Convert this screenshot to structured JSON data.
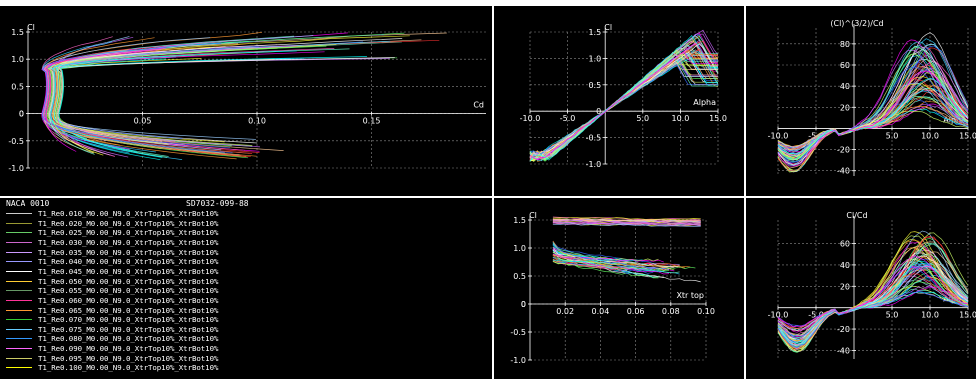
{
  "theme": {
    "background": "#000000",
    "axis": "#ffffff",
    "grid": "#8a8a8a",
    "text": "#ffffff"
  },
  "palette": [
    "#ff66cc",
    "#ffffff",
    "#66ff66",
    "#ffff33",
    "#33ccff",
    "#ff9933",
    "#cc66ff",
    "#66ffcc",
    "#ff3333",
    "#99ccff",
    "#ccff66",
    "#3366ff",
    "#ffcc99",
    "#00ffff",
    "#ff00ff"
  ],
  "legend": {
    "title": "NACA 0010",
    "title2": "SD7032-099-88",
    "entries": [
      {
        "label": "T1_Re0.010_M0.00_N9.0_XtrTop10%_XtrBot10%",
        "color": "#cccccc"
      },
      {
        "label": "T1_Re0.020_M0.00_N9.0_XtrTop10%_XtrBot10%",
        "color": "#999933"
      },
      {
        "label": "T1_Re0.025_M0.00_N9.0_XtrTop10%_XtrBot10%",
        "color": "#66cc66"
      },
      {
        "label": "T1_Re0.030_M0.00_N9.0_XtrTop10%_XtrBot10%",
        "color": "#cc66cc"
      },
      {
        "label": "T1_Re0.035_M0.00_N9.0_XtrTop10%_XtrBot10%",
        "color": "#cc99ff"
      },
      {
        "label": "T1_Re0.040_M0.00_N9.0_XtrTop10%_XtrBot10%",
        "color": "#9999ff"
      },
      {
        "label": "T1_Re0.045_M0.00_N9.0_XtrTop10%_XtrBot10%",
        "color": "#ffffff"
      },
      {
        "label": "T1_Re0.050_M0.00_N9.0_XtrTop10%_XtrBot10%",
        "color": "#ffcc33"
      },
      {
        "label": "T1_Re0.055_M0.00_N9.0_XtrTop10%_XtrBot10%",
        "color": "#669966"
      },
      {
        "label": "T1_Re0.060_M0.00_N9.0_XtrTop10%_XtrBot10%",
        "color": "#ff3399"
      },
      {
        "label": "T1_Re0.065_M0.00_N9.0_XtrTop10%_XtrBot10%",
        "color": "#ff9933"
      },
      {
        "label": "T1_Re0.070_M0.00_N9.0_XtrTop10%_XtrBot10%",
        "color": "#33cc33"
      },
      {
        "label": "T1_Re0.075_M0.00_N9.0_XtrTop10%_XtrBot10%",
        "color": "#66ccff"
      },
      {
        "label": "T1_Re0.080_M0.00_N9.0_XtrTop10%_XtrBot10%",
        "color": "#3399ff"
      },
      {
        "label": "T1_Re0.090_M0.00_N9.0_XtrTop10%_XtrBot10%",
        "color": "#ff66ff"
      },
      {
        "label": "T1_Re0.095_M0.00_N9.0_XtrTop10%_XtrBot10%",
        "color": "#cccc66"
      },
      {
        "label": "T1_Re0.100_M0.00_N9.0_XtrTop10%_XtrBot10%",
        "color": "#ffff00"
      }
    ]
  },
  "chart_data": [
    {
      "id": "polar",
      "type": "line",
      "xlabel": "Cd",
      "ylabel": "Cl",
      "xlim": [
        0,
        0.2
      ],
      "ylim": [
        -1.0,
        1.5
      ],
      "xticks": [
        "0.05",
        "0.10",
        "0.15"
      ],
      "yticks": [
        "-1.0",
        "-0.5",
        "0",
        "0.5",
        "1.0",
        "1.5"
      ],
      "origin_label": "0",
      "grid": true,
      "series_count": 60,
      "envelope": {
        "upper": [
          [
            0.005,
            0.8
          ],
          [
            0.006,
            1.1
          ],
          [
            0.008,
            1.3
          ],
          [
            0.012,
            1.45
          ],
          [
            0.025,
            1.5
          ],
          [
            0.06,
            1.46
          ],
          [
            0.1,
            1.32
          ],
          [
            0.14,
            1.05
          ],
          [
            0.17,
            0.85
          ],
          [
            0.186,
            0.75
          ]
        ],
        "lower": [
          [
            0.005,
            0.8
          ],
          [
            0.006,
            0.5
          ],
          [
            0.007,
            0.0
          ],
          [
            0.008,
            -0.4
          ],
          [
            0.01,
            -0.75
          ],
          [
            0.03,
            -0.8
          ],
          [
            0.06,
            -0.7
          ],
          [
            0.09,
            -0.45
          ],
          [
            0.12,
            -0.2
          ]
        ]
      }
    },
    {
      "id": "cl-alpha",
      "type": "line",
      "xlabel": "Alpha",
      "ylabel": "Cl",
      "xlim": [
        -10.0,
        15.0
      ],
      "ylim": [
        -1.0,
        1.5
      ],
      "xticks": [
        "-10.0",
        "-5.0",
        "5.0",
        "10.0",
        "15.0"
      ],
      "yticks": [
        "-1.0",
        "-0.5",
        "0",
        "0.5",
        "1.0",
        "1.5"
      ],
      "grid": true,
      "series_count": 60,
      "envelope": {
        "slope_per_deg": 0.11,
        "cl_max": 1.52,
        "alpha_stall": 11.0,
        "post_stall_low": 0.4
      }
    },
    {
      "id": "cl32-cd",
      "type": "line",
      "xlabel": "Alpha",
      "ylabel": "(Cl)^(3/2)/Cd",
      "xlim": [
        -10.0,
        15.0
      ],
      "ylim": [
        -45,
        95
      ],
      "xticks": [
        "-10.0",
        "-5.0",
        "5.0",
        "10.0",
        "15.0"
      ],
      "yticks": [
        "-40",
        "-20",
        "20",
        "40",
        "60",
        "80"
      ],
      "grid": true,
      "series_count": 60,
      "envelope": {
        "peak_alpha": 9.0,
        "peak_max": 90,
        "peak_min": 10,
        "trough_alpha": -8.0,
        "trough_min": -42
      }
    },
    {
      "id": "cl-xtr",
      "type": "line",
      "xlabel": "Xtr top",
      "ylabel": "Cl",
      "xlim": [
        0,
        0.1
      ],
      "ylim": [
        -1.0,
        1.5
      ],
      "xticks": [
        "0.02",
        "0.04",
        "0.06",
        "0.08",
        "0.10"
      ],
      "yticks": [
        "-1.0",
        "-0.5",
        "0",
        "0.5",
        "1.0",
        "1.5"
      ],
      "origin_label": "0",
      "grid": true,
      "series_count": 60,
      "envelope": {
        "top_band": [
          1.43,
          1.55
        ],
        "start_x": 0.013,
        "lower_band_start": [
          0.75,
          1.12
        ],
        "lower_band_end": [
          0.35,
          0.78
        ]
      }
    },
    {
      "id": "cl-cd",
      "type": "line",
      "xlabel": "Alpha",
      "ylabel": "Cl/Cd",
      "xlim": [
        -10.0,
        15.0
      ],
      "ylim": [
        -48,
        82
      ],
      "xticks": [
        "-10.0",
        "-5.0",
        "5.0",
        "10.0",
        "15.0"
      ],
      "yticks": [
        "-40",
        "-20",
        "20",
        "40",
        "60"
      ],
      "grid": true,
      "series_count": 60,
      "envelope": {
        "peak_alpha": 9.0,
        "peak_max": 72,
        "peak_min": 8,
        "trough_alpha": -7.5,
        "trough_min": -42
      }
    }
  ]
}
